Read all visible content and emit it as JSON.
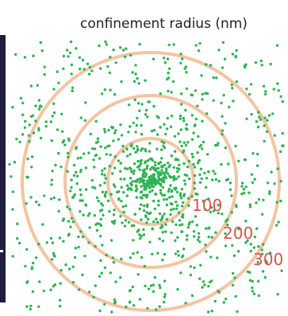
{
  "chart_data": {
    "type": "scatter",
    "title": "confinement radius (nm)",
    "rings": [
      {
        "radius_nm": 100,
        "label": "100"
      },
      {
        "radius_nm": 200,
        "label": "200"
      },
      {
        "radius_nm": 300,
        "label": "300"
      }
    ],
    "point_count": 1400,
    "point_distribution": "dense core within ~100 nm, spreading to ~350 nm",
    "colors": {
      "points": "#2eb352",
      "rings": "#f4c4a2",
      "ring_labels": "#d9534f"
    },
    "grid": false
  }
}
